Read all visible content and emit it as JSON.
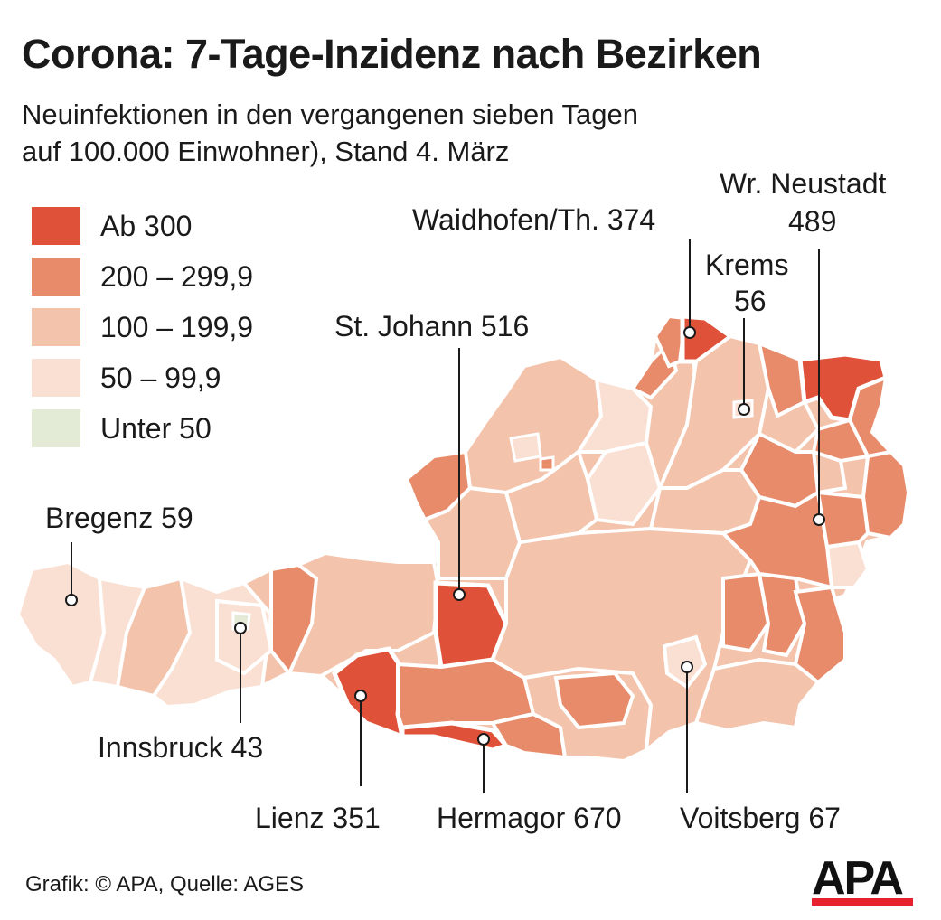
{
  "title": "Corona: 7-Tage-Inzidenz nach Bezirken",
  "subtitle_line1": "Neuinfektionen in den vergangenen sieben Tagen",
  "subtitle_line2": "auf 100.000 Einwohner), Stand 4. März",
  "legend": [
    {
      "label": "Ab 300",
      "color": "#df5138"
    },
    {
      "label": "200 – 299,9",
      "color": "#e88b6b"
    },
    {
      "label": "100 – 199,9",
      "color": "#f3c3ab"
    },
    {
      "label": "50 – 99,9",
      "color": "#fae0d3"
    },
    {
      "label": "Unter 50",
      "color": "#e3ead6"
    }
  ],
  "districts": [
    {
      "name": "Bregenz",
      "value": "59",
      "label": "Bregenz 59"
    },
    {
      "name": "Innsbruck",
      "value": "43",
      "label": "Innsbruck 43"
    },
    {
      "name": "Lienz",
      "value": "351",
      "label": "Lienz 351"
    },
    {
      "name": "Hermagor",
      "value": "670",
      "label": "Hermagor 670"
    },
    {
      "name": "Voitsberg",
      "value": "67",
      "label": "Voitsberg 67"
    },
    {
      "name": "St. Johann",
      "value": "516",
      "label": "St. Johann 516"
    },
    {
      "name": "Waidhofen/Th.",
      "value": "374",
      "label": "Waidhofen/Th. 374"
    },
    {
      "name": "Krems",
      "value": "56",
      "label_line1": "Krems",
      "label_line2": "56"
    },
    {
      "name": "Wr. Neustadt",
      "value": "489",
      "label_line1": "Wr. Neustadt",
      "label_line2": "489"
    }
  ],
  "footer": "Grafik: © APA, Quelle: AGES",
  "logo": {
    "text": "APA",
    "bar_color": "#e8212f"
  }
}
